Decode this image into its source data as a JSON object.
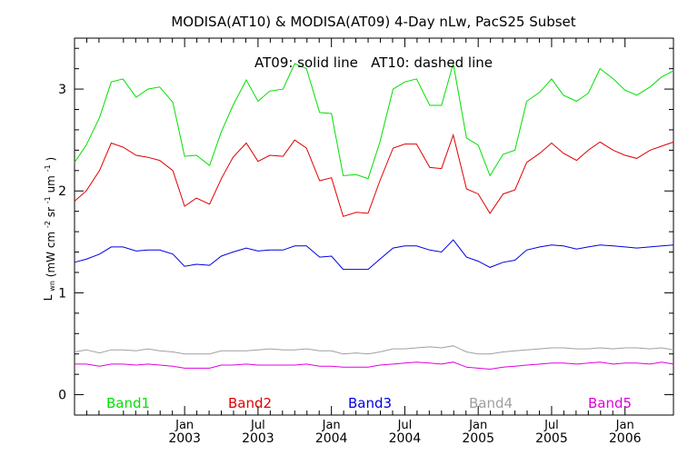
{
  "chart_data": {
    "type": "line",
    "title": "MODISA(AT10) & MODISA(AT09) 4-Day nLw, PacS25 Subset",
    "annotation": "AT09: solid line   AT10: dashed line",
    "ylabel": {
      "base": "L",
      "base_sub": "wn",
      "units_open": "(mW cm",
      "exp1": "-2",
      "mid1": " sr",
      "exp2": "-1",
      "mid2": " um",
      "exp3": "-1",
      "units_close": ")"
    },
    "ylim": [
      -0.2,
      3.5
    ],
    "y_ticks": [
      "0",
      "1",
      "2",
      "3"
    ],
    "y_tick_values": [
      0,
      1,
      2,
      3
    ],
    "xlim": [
      2002.25,
      2006.33
    ],
    "x_ticks": [
      {
        "value": 2003.0,
        "month": "Jan",
        "year": "2003"
      },
      {
        "value": 2003.5,
        "month": "Jul",
        "year": "2003"
      },
      {
        "value": 2004.0,
        "month": "Jan",
        "year": "2004"
      },
      {
        "value": 2004.5,
        "month": "Jul",
        "year": "2004"
      },
      {
        "value": 2005.0,
        "month": "Jan",
        "year": "2005"
      },
      {
        "value": 2005.5,
        "month": "Jul",
        "year": "2005"
      },
      {
        "value": 2006.0,
        "month": "Jan",
        "year": "2006"
      }
    ],
    "x": [
      2002.25,
      2002.33,
      2002.42,
      2002.5,
      2002.58,
      2002.67,
      2002.75,
      2002.83,
      2002.92,
      2003.0,
      2003.08,
      2003.17,
      2003.25,
      2003.33,
      2003.42,
      2003.5,
      2003.58,
      2003.67,
      2003.75,
      2003.83,
      2003.92,
      2004.0,
      2004.08,
      2004.17,
      2004.25,
      2004.33,
      2004.42,
      2004.5,
      2004.58,
      2004.67,
      2004.75,
      2004.83,
      2004.92,
      2005.0,
      2005.08,
      2005.17,
      2005.25,
      2005.33,
      2005.42,
      2005.5,
      2005.58,
      2005.67,
      2005.75,
      2005.83,
      2005.92,
      2006.0,
      2006.08,
      2006.17,
      2006.25,
      2006.33
    ],
    "series": [
      {
        "name": "Band1",
        "color": "#00e000",
        "values": [
          2.28,
          2.45,
          2.72,
          3.07,
          3.1,
          2.92,
          3.0,
          3.02,
          2.87,
          2.34,
          2.35,
          2.25,
          2.58,
          2.84,
          3.09,
          2.88,
          2.98,
          3.0,
          3.25,
          3.2,
          2.77,
          2.76,
          2.15,
          2.16,
          2.12,
          2.48,
          3.0,
          3.07,
          3.1,
          2.84,
          2.84,
          3.25,
          2.52,
          2.45,
          2.15,
          2.36,
          2.4,
          2.88,
          2.97,
          3.1,
          2.94,
          2.88,
          2.96,
          3.2,
          3.1,
          2.99,
          2.94,
          3.02,
          3.12,
          3.18
        ]
      },
      {
        "name": "Band2",
        "color": "#e00000",
        "values": [
          1.9,
          2.0,
          2.2,
          2.47,
          2.43,
          2.35,
          2.33,
          2.3,
          2.2,
          1.85,
          1.93,
          1.87,
          2.12,
          2.33,
          2.47,
          2.29,
          2.35,
          2.34,
          2.5,
          2.42,
          2.1,
          2.13,
          1.75,
          1.79,
          1.78,
          2.1,
          2.42,
          2.46,
          2.46,
          2.23,
          2.22,
          2.55,
          2.02,
          1.97,
          1.78,
          1.97,
          2.01,
          2.28,
          2.37,
          2.47,
          2.37,
          2.3,
          2.4,
          2.48,
          2.4,
          2.35,
          2.32,
          2.4,
          2.44,
          2.48
        ]
      },
      {
        "name": "Band3",
        "color": "#0000e0",
        "values": [
          1.3,
          1.33,
          1.38,
          1.45,
          1.45,
          1.41,
          1.42,
          1.42,
          1.38,
          1.26,
          1.28,
          1.27,
          1.36,
          1.4,
          1.44,
          1.41,
          1.42,
          1.42,
          1.46,
          1.46,
          1.35,
          1.36,
          1.23,
          1.23,
          1.23,
          1.33,
          1.44,
          1.46,
          1.46,
          1.42,
          1.4,
          1.52,
          1.35,
          1.31,
          1.25,
          1.3,
          1.32,
          1.42,
          1.45,
          1.47,
          1.46,
          1.43,
          1.45,
          1.47,
          1.46,
          1.45,
          1.44,
          1.45,
          1.46,
          1.47
        ]
      },
      {
        "name": "Band4",
        "color": "#a0a0a0",
        "values": [
          0.42,
          0.44,
          0.41,
          0.44,
          0.44,
          0.43,
          0.45,
          0.43,
          0.42,
          0.4,
          0.4,
          0.4,
          0.43,
          0.43,
          0.43,
          0.44,
          0.45,
          0.44,
          0.44,
          0.45,
          0.43,
          0.43,
          0.4,
          0.41,
          0.4,
          0.42,
          0.45,
          0.45,
          0.46,
          0.47,
          0.46,
          0.48,
          0.42,
          0.4,
          0.4,
          0.42,
          0.43,
          0.44,
          0.45,
          0.46,
          0.46,
          0.45,
          0.45,
          0.46,
          0.45,
          0.46,
          0.46,
          0.45,
          0.46,
          0.44
        ]
      },
      {
        "name": "Band5",
        "color": "#e000e0",
        "values": [
          0.3,
          0.3,
          0.28,
          0.3,
          0.3,
          0.29,
          0.3,
          0.29,
          0.28,
          0.26,
          0.26,
          0.26,
          0.29,
          0.29,
          0.3,
          0.29,
          0.29,
          0.29,
          0.29,
          0.3,
          0.28,
          0.28,
          0.27,
          0.27,
          0.27,
          0.29,
          0.3,
          0.31,
          0.32,
          0.31,
          0.3,
          0.32,
          0.27,
          0.26,
          0.25,
          0.27,
          0.28,
          0.29,
          0.3,
          0.31,
          0.31,
          0.3,
          0.31,
          0.32,
          0.3,
          0.31,
          0.31,
          0.3,
          0.32,
          0.3
        ]
      }
    ],
    "legend_placement": "bottom",
    "grid": false
  }
}
